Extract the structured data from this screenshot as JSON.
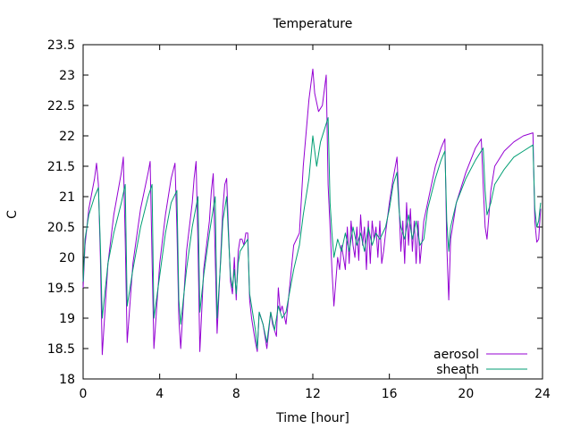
{
  "chart_data": {
    "type": "line",
    "title": "Temperature",
    "xlabel": "Time [hour]",
    "ylabel": "C",
    "xlim": [
      0,
      24
    ],
    "ylim": [
      18,
      23.5
    ],
    "xticks": [
      0,
      4,
      8,
      12,
      16,
      20,
      24
    ],
    "xtick_labels": [
      "0",
      "4",
      "8",
      "12",
      "16",
      "20",
      "24"
    ],
    "yticks": [
      18,
      18.5,
      19,
      19.5,
      20,
      20.5,
      21,
      21.5,
      22,
      22.5,
      23,
      23.5
    ],
    "ytick_labels": [
      "18",
      "18.5",
      "19",
      "19.5",
      "20",
      "20.5",
      "21",
      "21.5",
      "22",
      "22.5",
      "23",
      "23.5"
    ],
    "grid": false,
    "legend_position": "bottom-right",
    "series": [
      {
        "name": "aerosol",
        "color": "#9400d3",
        "x": [
          0,
          0.1,
          0.3,
          0.6,
          0.7,
          0.8,
          0.9,
          1.0,
          1.3,
          1.6,
          2.0,
          2.1,
          2.2,
          2.3,
          2.6,
          3.0,
          3.4,
          3.5,
          3.6,
          3.7,
          4.0,
          4.3,
          4.6,
          4.8,
          4.9,
          5.0,
          5.1,
          5.4,
          5.7,
          5.8,
          5.9,
          6.0,
          6.1,
          6.3,
          6.6,
          6.7,
          6.8,
          6.9,
          7.0,
          7.2,
          7.3,
          7.4,
          7.5,
          7.6,
          7.7,
          7.8,
          7.9,
          8.0,
          8.1,
          8.2,
          8.3,
          8.4,
          8.5,
          8.6,
          8.7,
          8.8,
          9.0,
          9.1,
          9.2,
          9.4,
          9.5,
          9.6,
          9.8,
          9.9,
          10.0,
          10.1,
          10.2,
          10.3,
          10.4,
          10.6,
          11.0,
          11.3,
          11.5,
          11.8,
          12.0,
          12.1,
          12.3,
          12.5,
          12.7,
          12.8,
          12.9,
          13.0,
          13.1,
          13.3,
          13.4,
          13.5,
          13.6,
          13.7,
          13.8,
          13.9,
          14.0,
          14.1,
          14.2,
          14.3,
          14.4,
          14.5,
          14.6,
          14.7,
          14.8,
          14.9,
          15.0,
          15.1,
          15.2,
          15.3,
          15.4,
          15.5,
          15.6,
          15.7,
          15.8,
          16.0,
          16.2,
          16.4,
          16.5,
          16.6,
          16.7,
          16.8,
          16.9,
          17.0,
          17.1,
          17.2,
          17.3,
          17.4,
          17.5,
          17.6,
          17.8,
          18.0,
          18.4,
          18.7,
          18.9,
          19.0,
          19.1,
          19.2,
          19.5,
          20.0,
          20.5,
          20.8,
          20.9,
          21.0,
          21.1,
          21.3,
          21.5,
          22.0,
          22.5,
          23.0,
          23.5,
          23.6,
          23.7,
          23.8,
          23.9
        ],
        "y": [
          19.5,
          20.2,
          20.8,
          21.3,
          21.55,
          21.2,
          20.0,
          18.4,
          19.9,
          20.7,
          21.4,
          21.65,
          20.3,
          18.6,
          19.9,
          20.8,
          21.4,
          21.58,
          20.0,
          18.5,
          19.9,
          20.7,
          21.3,
          21.55,
          20.5,
          19.0,
          18.5,
          20.1,
          20.9,
          21.3,
          21.58,
          20.2,
          18.45,
          19.8,
          20.6,
          21.1,
          21.38,
          20.0,
          18.75,
          20.1,
          20.8,
          21.2,
          21.3,
          20.4,
          19.6,
          19.4,
          20.0,
          19.3,
          20.1,
          20.3,
          20.3,
          20.2,
          20.4,
          20.4,
          19.3,
          19.0,
          18.6,
          18.45,
          19.1,
          18.9,
          18.7,
          18.5,
          19.1,
          18.9,
          18.8,
          18.7,
          19.5,
          19.1,
          19.2,
          18.9,
          20.2,
          20.4,
          21.5,
          22.6,
          23.1,
          22.7,
          22.4,
          22.5,
          23.0,
          21.2,
          20.5,
          19.8,
          19.2,
          20.0,
          19.8,
          20.2,
          20.0,
          19.8,
          20.5,
          19.9,
          20.6,
          20.2,
          20.0,
          20.5,
          19.95,
          20.7,
          20.2,
          20.5,
          19.8,
          20.6,
          19.9,
          20.6,
          20.3,
          20.5,
          20.0,
          20.6,
          19.9,
          20.1,
          20.4,
          20.9,
          21.3,
          21.65,
          20.9,
          20.1,
          20.6,
          19.9,
          20.9,
          20.2,
          20.8,
          20.1,
          20.6,
          19.9,
          20.6,
          19.9,
          20.6,
          20.9,
          21.5,
          21.8,
          21.95,
          20.2,
          19.3,
          20.3,
          20.9,
          21.4,
          21.8,
          21.95,
          21.2,
          20.5,
          20.3,
          21.1,
          21.5,
          21.75,
          21.9,
          22.0,
          22.05,
          20.6,
          20.25,
          20.3,
          20.8
        ],
        "trend_note": "oscillating ~1.4h sawtooth with spikes near 12h"
      },
      {
        "name": "sheath",
        "color": "#009e73",
        "x": [
          0,
          0.1,
          0.3,
          0.6,
          0.8,
          0.9,
          1.0,
          1.3,
          1.6,
          2.0,
          2.2,
          2.3,
          2.6,
          3.0,
          3.4,
          3.6,
          3.7,
          4.0,
          4.3,
          4.6,
          4.9,
          5.0,
          5.1,
          5.4,
          5.7,
          6.0,
          6.1,
          6.3,
          6.6,
          6.9,
          7.0,
          7.2,
          7.3,
          7.5,
          7.6,
          7.7,
          7.8,
          7.9,
          8.0,
          8.1,
          8.2,
          8.4,
          8.6,
          8.7,
          8.8,
          9.0,
          9.1,
          9.2,
          9.4,
          9.6,
          9.8,
          10.0,
          10.2,
          10.4,
          10.6,
          11.0,
          11.3,
          11.5,
          11.8,
          12.0,
          12.2,
          12.4,
          12.6,
          12.8,
          12.9,
          13.0,
          13.1,
          13.3,
          13.5,
          13.7,
          13.9,
          14.1,
          14.3,
          14.5,
          14.7,
          14.9,
          15.1,
          15.3,
          15.5,
          15.8,
          16.0,
          16.2,
          16.4,
          16.5,
          16.6,
          16.8,
          17.0,
          17.2,
          17.4,
          17.6,
          17.8,
          18.0,
          18.4,
          18.7,
          18.9,
          19.0,
          19.1,
          19.2,
          19.5,
          20.0,
          20.5,
          20.9,
          21.0,
          21.1,
          21.3,
          21.5,
          22.0,
          22.5,
          23.0,
          23.5,
          23.6,
          23.7,
          23.8,
          23.9
        ],
        "y": [
          19.6,
          20.3,
          20.7,
          21.0,
          21.15,
          20.2,
          19.0,
          19.9,
          20.4,
          20.9,
          21.2,
          19.2,
          19.8,
          20.5,
          21.0,
          21.2,
          19.0,
          19.7,
          20.4,
          20.9,
          21.1,
          19.3,
          18.9,
          19.8,
          20.5,
          21.0,
          19.1,
          19.7,
          20.4,
          21.0,
          19.0,
          20.0,
          20.6,
          21.0,
          20.3,
          19.7,
          19.5,
          19.8,
          19.4,
          19.9,
          20.1,
          20.2,
          20.3,
          19.4,
          19.2,
          18.8,
          18.5,
          19.1,
          18.9,
          18.6,
          19.1,
          18.8,
          19.2,
          19.0,
          19.1,
          19.8,
          20.2,
          20.7,
          21.3,
          22.0,
          21.5,
          21.9,
          22.1,
          22.3,
          20.9,
          20.4,
          20.0,
          20.3,
          20.1,
          20.4,
          20.1,
          20.5,
          20.2,
          20.4,
          20.1,
          20.5,
          20.2,
          20.4,
          20.3,
          20.5,
          20.8,
          21.2,
          21.4,
          20.8,
          20.5,
          20.3,
          20.7,
          20.3,
          20.6,
          20.2,
          20.3,
          20.8,
          21.3,
          21.6,
          21.75,
          20.6,
          20.1,
          20.5,
          20.9,
          21.3,
          21.6,
          21.8,
          21.1,
          20.7,
          20.9,
          21.2,
          21.45,
          21.65,
          21.75,
          21.85,
          20.8,
          20.5,
          20.6,
          20.9
        ]
      }
    ]
  }
}
